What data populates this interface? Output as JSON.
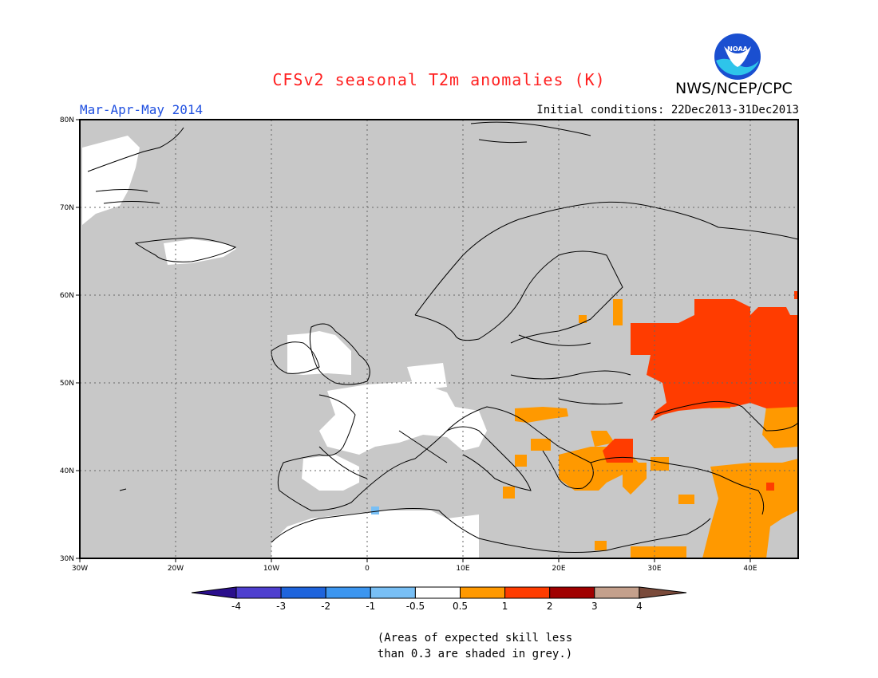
{
  "title": "CFSv2 seasonal T2m anomalies (K)",
  "period": "Mar-Apr-May 2014",
  "initial_conditions": "Initial conditions: 22Dec2013-31Dec2013",
  "agency": "NWS/NCEP/CPC",
  "logo_text": "NOAA",
  "lat_labels": [
    "80N",
    "70N",
    "60N",
    "50N",
    "40N",
    "30N"
  ],
  "lon_labels": [
    "30W",
    "20W",
    "10W",
    "0",
    "10E",
    "20E",
    "30E",
    "40E"
  ],
  "colorbar": {
    "tick_labels": [
      "-4",
      "-3",
      "-2",
      "-1",
      "-0.5",
      "0.5",
      "1",
      "2",
      "3",
      "4"
    ],
    "colors": [
      "#2a0f8c",
      "#4e3fcf",
      "#1e64dc",
      "#3c96f0",
      "#78bff5",
      "#ffffff",
      "#ff9900",
      "#ff3c00",
      "#a00000",
      "#c4a08c",
      "#7a4a3a"
    ]
  },
  "skill_grey": "#c8c8c8",
  "note_line1": "(Areas of expected skill less",
  "note_line2": "than 0.3 are shaded in grey.)"
}
